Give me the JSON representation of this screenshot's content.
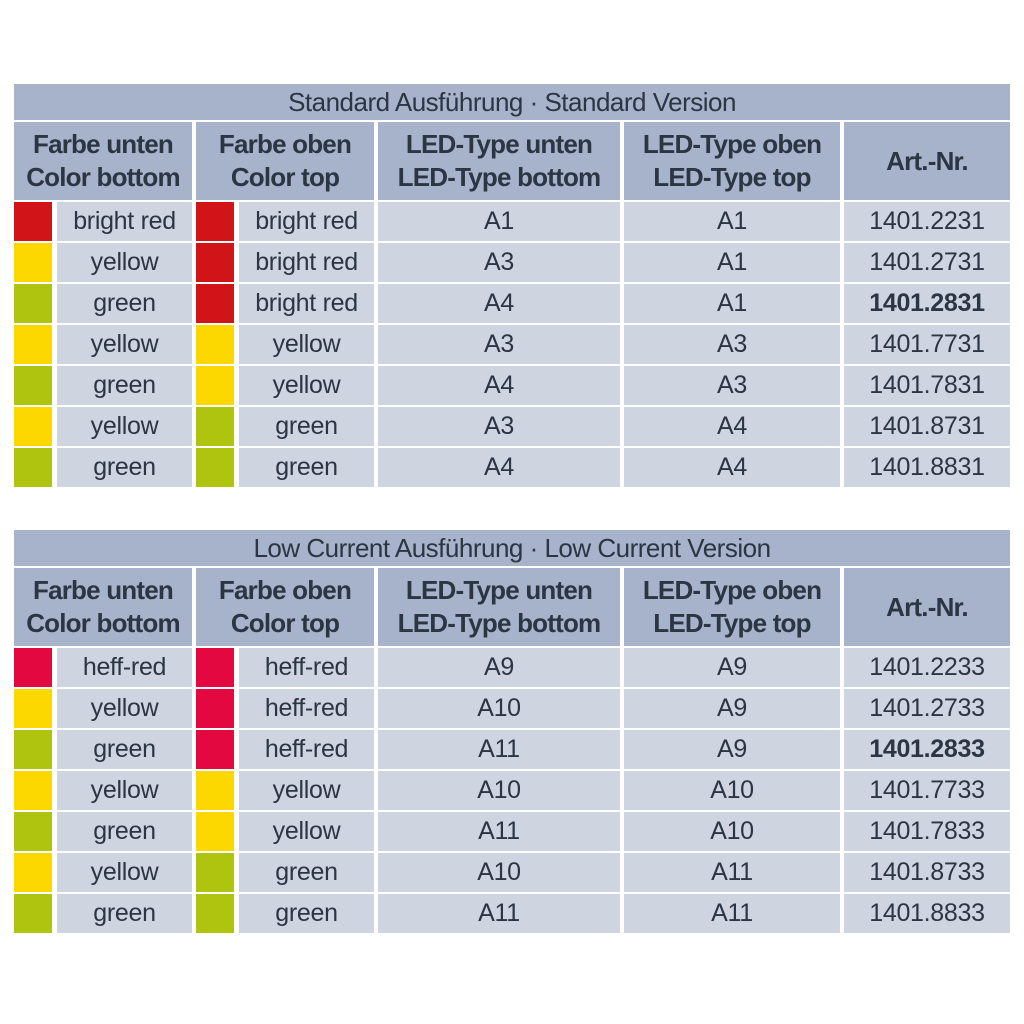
{
  "colors": {
    "band": "#a7b3ca",
    "cell": "#cfd5e0",
    "text": "#2b3543",
    "swatch": {
      "bright-red": "#d01418",
      "heff-red": "#e30840",
      "yellow": "#fdd700",
      "green": "#aec40e"
    }
  },
  "columns": [
    {
      "line1": "Farbe unten",
      "line2": "Color bottom"
    },
    {
      "line1": "Farbe oben",
      "line2": "Color top"
    },
    {
      "line1": "LED-Type unten",
      "line2": "LED-Type bottom"
    },
    {
      "line1": "LED-Type oben",
      "line2": "LED-Type top"
    },
    {
      "line1": "Art.-Nr.",
      "line2": ""
    }
  ],
  "tables": [
    {
      "name": "standard-version-table",
      "title": "Standard Ausführung · Standard Version",
      "rows": [
        {
          "color_bottom": {
            "swatch": "bright-red",
            "label": "bright red"
          },
          "color_top": {
            "swatch": "bright-red",
            "label": "bright red"
          },
          "led_bottom": "A1",
          "led_top": "A1",
          "art_nr": "1401.2231",
          "art_nr_bold": false
        },
        {
          "color_bottom": {
            "swatch": "yellow",
            "label": "yellow"
          },
          "color_top": {
            "swatch": "bright-red",
            "label": "bright red"
          },
          "led_bottom": "A3",
          "led_top": "A1",
          "art_nr": "1401.2731",
          "art_nr_bold": false
        },
        {
          "color_bottom": {
            "swatch": "green",
            "label": "green"
          },
          "color_top": {
            "swatch": "bright-red",
            "label": "bright red"
          },
          "led_bottom": "A4",
          "led_top": "A1",
          "art_nr": "1401.2831",
          "art_nr_bold": true
        },
        {
          "color_bottom": {
            "swatch": "yellow",
            "label": "yellow"
          },
          "color_top": {
            "swatch": "yellow",
            "label": "yellow"
          },
          "led_bottom": "A3",
          "led_top": "A3",
          "art_nr": "1401.7731",
          "art_nr_bold": false
        },
        {
          "color_bottom": {
            "swatch": "green",
            "label": "green"
          },
          "color_top": {
            "swatch": "yellow",
            "label": "yellow"
          },
          "led_bottom": "A4",
          "led_top": "A3",
          "art_nr": "1401.7831",
          "art_nr_bold": false
        },
        {
          "color_bottom": {
            "swatch": "yellow",
            "label": "yellow"
          },
          "color_top": {
            "swatch": "green",
            "label": "green"
          },
          "led_bottom": "A3",
          "led_top": "A4",
          "art_nr": "1401.8731",
          "art_nr_bold": false
        },
        {
          "color_bottom": {
            "swatch": "green",
            "label": "green"
          },
          "color_top": {
            "swatch": "green",
            "label": "green"
          },
          "led_bottom": "A4",
          "led_top": "A4",
          "art_nr": "1401.8831",
          "art_nr_bold": false
        }
      ]
    },
    {
      "name": "low-current-version-table",
      "title": "Low Current Ausführung · Low Current Version",
      "rows": [
        {
          "color_bottom": {
            "swatch": "heff-red",
            "label": "heff-red"
          },
          "color_top": {
            "swatch": "heff-red",
            "label": "heff-red"
          },
          "led_bottom": "A9",
          "led_top": "A9",
          "art_nr": "1401.2233",
          "art_nr_bold": false
        },
        {
          "color_bottom": {
            "swatch": "yellow",
            "label": "yellow"
          },
          "color_top": {
            "swatch": "heff-red",
            "label": "heff-red"
          },
          "led_bottom": "A10",
          "led_top": "A9",
          "art_nr": "1401.2733",
          "art_nr_bold": false
        },
        {
          "color_bottom": {
            "swatch": "green",
            "label": "green"
          },
          "color_top": {
            "swatch": "heff-red",
            "label": "heff-red"
          },
          "led_bottom": "A11",
          "led_top": "A9",
          "art_nr": "1401.2833",
          "art_nr_bold": true
        },
        {
          "color_bottom": {
            "swatch": "yellow",
            "label": "yellow"
          },
          "color_top": {
            "swatch": "yellow",
            "label": "yellow"
          },
          "led_bottom": "A10",
          "led_top": "A10",
          "art_nr": "1401.7733",
          "art_nr_bold": false
        },
        {
          "color_bottom": {
            "swatch": "green",
            "label": "green"
          },
          "color_top": {
            "swatch": "yellow",
            "label": "yellow"
          },
          "led_bottom": "A11",
          "led_top": "A10",
          "art_nr": "1401.7833",
          "art_nr_bold": false
        },
        {
          "color_bottom": {
            "swatch": "yellow",
            "label": "yellow"
          },
          "color_top": {
            "swatch": "green",
            "label": "green"
          },
          "led_bottom": "A10",
          "led_top": "A11",
          "art_nr": "1401.8733",
          "art_nr_bold": false
        },
        {
          "color_bottom": {
            "swatch": "green",
            "label": "green"
          },
          "color_top": {
            "swatch": "green",
            "label": "green"
          },
          "led_bottom": "A11",
          "led_top": "A11",
          "art_nr": "1401.8833",
          "art_nr_bold": false
        }
      ]
    }
  ]
}
